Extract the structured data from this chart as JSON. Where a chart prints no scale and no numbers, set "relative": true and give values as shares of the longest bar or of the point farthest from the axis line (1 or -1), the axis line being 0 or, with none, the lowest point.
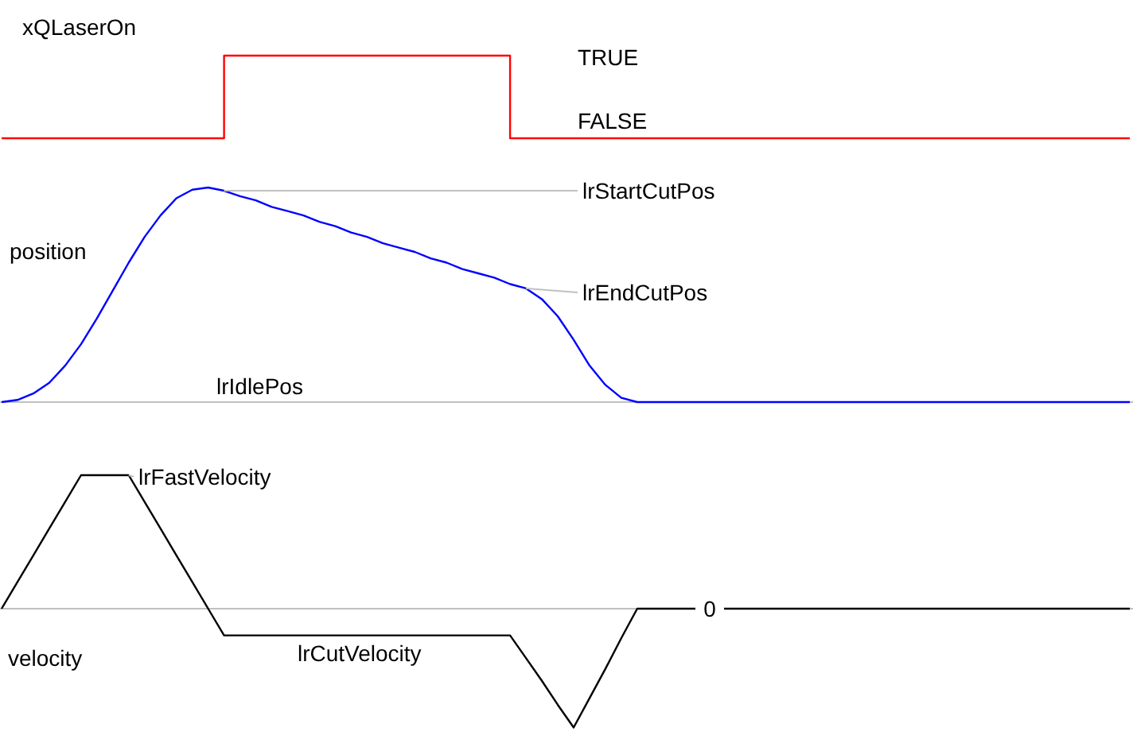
{
  "chart_data": [
    {
      "type": "step",
      "ylabel": "xQLaserOn",
      "relative": true,
      "categories": [
        null,
        null,
        null,
        null,
        null,
        null,
        null,
        null,
        null,
        null,
        null,
        null,
        null,
        null,
        null,
        null,
        null,
        null,
        null,
        null,
        null,
        null,
        null,
        null,
        null,
        null,
        null,
        null,
        null,
        null,
        null,
        null,
        null,
        null,
        null,
        null,
        null,
        null,
        null,
        null,
        null,
        null,
        null,
        null,
        null,
        null,
        null,
        null,
        null,
        null,
        null,
        null,
        null,
        null,
        null,
        null,
        null,
        null,
        null,
        null,
        null,
        null,
        null,
        null,
        null,
        null,
        null,
        null,
        null,
        null,
        null,
        null
      ],
      "series": [
        {
          "color": "#ff0000",
          "values": [
            0,
            0,
            0,
            0,
            0,
            0,
            0,
            0,
            0,
            0,
            0,
            0,
            0,
            0,
            1,
            1,
            1,
            1,
            1,
            1,
            1,
            1,
            1,
            1,
            1,
            1,
            1,
            1,
            1,
            1,
            1,
            1,
            0,
            0,
            0,
            0,
            0,
            0,
            0,
            0,
            0,
            0,
            0,
            0,
            0,
            0,
            0,
            0,
            0,
            0,
            0,
            0,
            0,
            0,
            0,
            0,
            0,
            0,
            0,
            0,
            0,
            0,
            0,
            0,
            0,
            0,
            0,
            0,
            0,
            0,
            0,
            0
          ]
        }
      ],
      "annotations": [
        "TRUE",
        "FALSE"
      ]
    },
    {
      "type": "line",
      "ylabel": "position",
      "relative": true,
      "categories": [
        null,
        null,
        null,
        null,
        null,
        null,
        null,
        null,
        null,
        null,
        null,
        null,
        null,
        null,
        null,
        null,
        null,
        null,
        null,
        null,
        null,
        null,
        null,
        null,
        null,
        null,
        null,
        null,
        null,
        null,
        null,
        null,
        null,
        null,
        null,
        null,
        null,
        null,
        null,
        null,
        null,
        null,
        null,
        null,
        null,
        null,
        null,
        null,
        null,
        null,
        null,
        null,
        null,
        null,
        null,
        null,
        null,
        null,
        null,
        null,
        null,
        null,
        null,
        null,
        null,
        null,
        null,
        null,
        null,
        null,
        null,
        null
      ],
      "series": [
        {
          "color": "#0000ff",
          "values": [
            0,
            0.01,
            0.04,
            0.09,
            0.17,
            0.27,
            0.39,
            0.52,
            0.65,
            0.77,
            0.87,
            0.95,
            0.99,
            1,
            0.985,
            0.96,
            0.94,
            0.91,
            0.89,
            0.87,
            0.84,
            0.82,
            0.79,
            0.77,
            0.74,
            0.72,
            0.7,
            0.67,
            0.65,
            0.62,
            0.6,
            0.58,
            0.55,
            0.53,
            0.48,
            0.4,
            0.29,
            0.17,
            0.08,
            0.02,
            0,
            0,
            0,
            0,
            0,
            0,
            0,
            0,
            0,
            0,
            0,
            0,
            0,
            0,
            0,
            0,
            0,
            0,
            0,
            0,
            0,
            0,
            0,
            0,
            0,
            0,
            0,
            0,
            0,
            0,
            0,
            0
          ]
        }
      ],
      "ref_lines": [
        {
          "axis": "y",
          "value": 0,
          "label": "lrIdlePos",
          "color": "#c0c0c0"
        }
      ],
      "annotations": [
        "lrStartCutPos",
        "lrEndCutPos"
      ]
    },
    {
      "type": "line",
      "ylabel": "velocity",
      "relative": true,
      "categories": [
        null,
        null,
        null,
        null,
        null,
        null,
        null,
        null,
        null,
        null,
        null,
        null,
        null,
        null,
        null,
        null,
        null,
        null,
        null,
        null,
        null,
        null,
        null,
        null,
        null,
        null,
        null,
        null,
        null,
        null,
        null,
        null,
        null,
        null,
        null,
        null,
        null,
        null,
        null,
        null,
        null,
        null,
        null,
        null,
        null,
        null,
        null,
        null,
        null,
        null,
        null,
        null,
        null,
        null,
        null,
        null,
        null,
        null,
        null,
        null,
        null,
        null,
        null,
        null,
        null,
        null,
        null,
        null,
        null,
        null,
        null,
        null
      ],
      "series": [
        {
          "color": "#000000",
          "values": [
            0,
            0.2,
            0.4,
            0.6,
            0.8,
            1,
            1,
            1,
            1,
            0.8,
            0.6,
            0.4,
            0.2,
            0,
            -0.2,
            -0.2,
            -0.2,
            -0.2,
            -0.2,
            -0.2,
            -0.2,
            -0.2,
            -0.2,
            -0.2,
            -0.2,
            -0.2,
            -0.2,
            -0.2,
            -0.2,
            -0.2,
            -0.2,
            -0.2,
            -0.2,
            -0.37,
            -0.54,
            -0.72,
            -0.89,
            -0.67,
            -0.45,
            -0.22,
            0,
            0,
            0,
            0,
            0,
            0,
            0,
            0,
            0,
            0,
            0,
            0,
            0,
            0,
            0,
            0,
            0,
            0,
            0,
            0,
            0,
            0,
            0,
            0,
            0,
            0,
            0,
            0,
            0,
            0,
            0,
            0
          ]
        }
      ],
      "ref_lines": [
        {
          "axis": "y",
          "value": 0,
          "label": "0",
          "color": "#c0c0c0"
        }
      ],
      "annotations": [
        "lrFastVelocity",
        "lrCutVelocity"
      ]
    }
  ]
}
